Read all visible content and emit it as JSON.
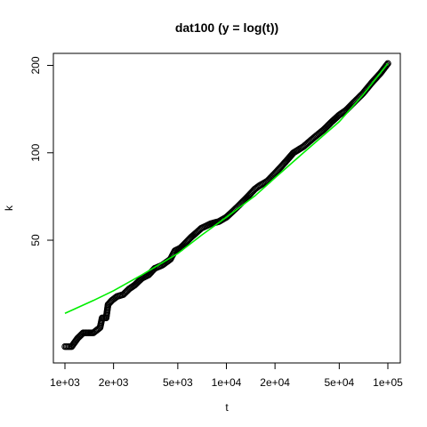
{
  "chart_data": {
    "type": "scatter",
    "title": "dat100 (y = log(t))",
    "xlabel": "t",
    "ylabel": "k",
    "x_scale": "log",
    "y_scale": "log",
    "xlim": [
      1000,
      100000
    ],
    "ylim": [
      21,
      205
    ],
    "x_ticks": [
      {
        "value": 1000,
        "label": "1e+03"
      },
      {
        "value": 2000,
        "label": "2e+03"
      },
      {
        "value": 5000,
        "label": "5e+03"
      },
      {
        "value": 10000,
        "label": "1e+04"
      },
      {
        "value": 20000,
        "label": "2e+04"
      },
      {
        "value": 50000,
        "label": "5e+04"
      },
      {
        "value": 100000,
        "label": "1e+05"
      }
    ],
    "y_ticks": [
      {
        "value": 50,
        "label": "50"
      },
      {
        "value": 100,
        "label": "100"
      },
      {
        "value": 200,
        "label": "200"
      }
    ],
    "series": [
      {
        "kind": "points",
        "marker": "open-circle",
        "color": "#000000",
        "points": [
          [
            1000,
            21.5
          ],
          [
            1100,
            21.5
          ],
          [
            1200,
            23
          ],
          [
            1300,
            24
          ],
          [
            1500,
            24
          ],
          [
            1650,
            25
          ],
          [
            1700,
            27
          ],
          [
            1800,
            27
          ],
          [
            1850,
            30
          ],
          [
            1950,
            31
          ],
          [
            2100,
            32
          ],
          [
            2300,
            32.5
          ],
          [
            2500,
            34
          ],
          [
            2700,
            35
          ],
          [
            3000,
            37
          ],
          [
            3300,
            38
          ],
          [
            3600,
            40
          ],
          [
            4000,
            41
          ],
          [
            4500,
            43
          ],
          [
            4800,
            46
          ],
          [
            5200,
            47
          ],
          [
            5600,
            49
          ],
          [
            6000,
            51
          ],
          [
            6500,
            53
          ],
          [
            7000,
            55
          ],
          [
            7500,
            56
          ],
          [
            8000,
            57
          ],
          [
            9000,
            58
          ],
          [
            10000,
            60
          ],
          [
            11000,
            63
          ],
          [
            12000,
            66
          ],
          [
            13000,
            69
          ],
          [
            14000,
            72
          ],
          [
            15000,
            75
          ],
          [
            16000,
            77
          ],
          [
            18000,
            80
          ],
          [
            20000,
            85
          ],
          [
            22000,
            90
          ],
          [
            24000,
            95
          ],
          [
            26000,
            100
          ],
          [
            30000,
            105
          ],
          [
            35000,
            113
          ],
          [
            40000,
            120
          ],
          [
            45000,
            128
          ],
          [
            50000,
            135
          ],
          [
            55000,
            140
          ],
          [
            60000,
            147
          ],
          [
            70000,
            160
          ],
          [
            80000,
            175
          ],
          [
            90000,
            188
          ],
          [
            100000,
            203
          ]
        ]
      },
      {
        "kind": "line",
        "color": "#00ee00",
        "points": [
          [
            1000,
            28
          ],
          [
            1500,
            31
          ],
          [
            2000,
            33.5
          ],
          [
            3000,
            38
          ],
          [
            5000,
            45
          ],
          [
            7000,
            52
          ],
          [
            10000,
            60
          ],
          [
            15000,
            71
          ],
          [
            20000,
            82
          ],
          [
            30000,
            100
          ],
          [
            50000,
            128
          ],
          [
            70000,
            158
          ],
          [
            100000,
            203
          ]
        ]
      }
    ]
  }
}
